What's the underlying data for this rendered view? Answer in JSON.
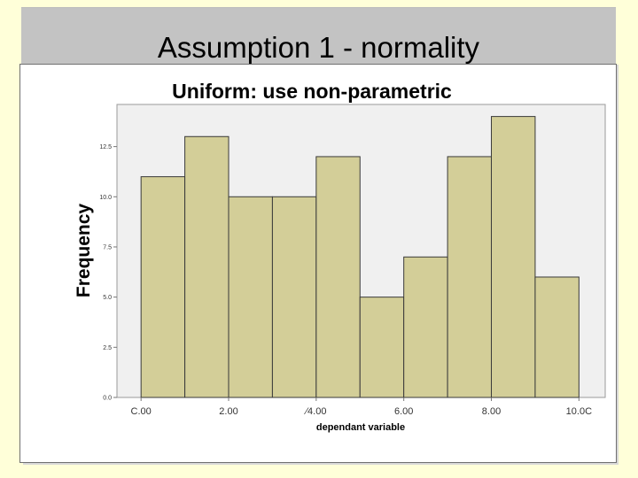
{
  "slide": {
    "title": "Assumption 1 - normality"
  },
  "colors": {
    "background": "#ffffd9",
    "title_bar": "#c3c3c3",
    "plot_area": "#f0f0f0",
    "bar_fill": "#d3ce98",
    "bar_stroke": "#3a3a3a"
  },
  "chart_data": {
    "type": "bar",
    "title": "Uniform: use non-parametric",
    "xlabel": "dependant variable",
    "ylabel": "Frequency",
    "bins": [
      {
        "from": 0.0,
        "to": 1.0,
        "count": 11
      },
      {
        "from": 1.0,
        "to": 2.0,
        "count": 13
      },
      {
        "from": 2.0,
        "to": 3.0,
        "count": 10
      },
      {
        "from": 3.0,
        "to": 4.0,
        "count": 10
      },
      {
        "from": 4.0,
        "to": 5.0,
        "count": 12
      },
      {
        "from": 5.0,
        "to": 6.0,
        "count": 5
      },
      {
        "from": 6.0,
        "to": 7.0,
        "count": 7
      },
      {
        "from": 7.0,
        "to": 8.0,
        "count": 12
      },
      {
        "from": 8.0,
        "to": 9.0,
        "count": 14
      },
      {
        "from": 9.0,
        "to": 10.0,
        "count": 6
      }
    ],
    "x_ticks": [
      "C.00",
      "2.00",
      "⁄4.00",
      "6.00",
      "8.00",
      "10.0C"
    ],
    "x_tick_values": [
      0,
      2,
      4,
      6,
      8,
      10
    ],
    "y_ticks": [
      "0.0",
      "2.5",
      "5.0",
      "7.5",
      "10.0",
      "12.5"
    ],
    "y_tick_values": [
      0,
      2.5,
      5,
      7.5,
      10,
      12.5
    ],
    "xlim": [
      -0.55,
      10.6
    ],
    "ylim": [
      0,
      14.6
    ],
    "grid": false
  }
}
